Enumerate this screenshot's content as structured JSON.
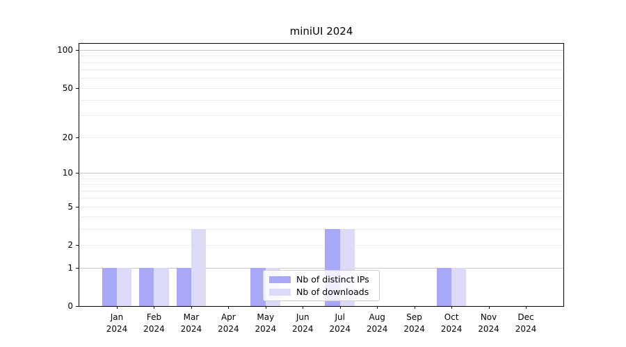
{
  "chart_data": {
    "type": "bar",
    "title": "miniUI 2024",
    "categories": [
      "Jan",
      "Feb",
      "Mar",
      "Apr",
      "May",
      "Jun",
      "Jul",
      "Aug",
      "Sep",
      "Oct",
      "Nov",
      "Dec"
    ],
    "year_label": "2024",
    "series": [
      {
        "name": "Nb of distinct IPs",
        "color": "#a8a8f6",
        "values": [
          1,
          1,
          1,
          0,
          1,
          0,
          3,
          0,
          0,
          1,
          0,
          0
        ]
      },
      {
        "name": "Nb of downloads",
        "color": "#dbdbf8",
        "values": [
          1,
          1,
          3,
          0,
          1,
          0,
          3,
          0,
          0,
          1,
          0,
          0
        ]
      }
    ],
    "y_axis": {
      "scale": "log1p",
      "ticks": [
        0,
        1,
        2,
        5,
        10,
        20,
        50,
        100
      ],
      "top_value": 112,
      "gridlines_major": [
        1,
        10,
        100
      ],
      "gridlines_minor": [
        2,
        3,
        4,
        5,
        6,
        7,
        8,
        9,
        20,
        30,
        40,
        50,
        60,
        70,
        80,
        90
      ]
    },
    "x_axis": {
      "tick_label_lines": 2
    },
    "legend": {
      "position": "lower center"
    },
    "colors": {
      "grid_major": "#c9c9c9",
      "grid_minor": "#ededed",
      "axis": "#000000",
      "background": "#ffffff"
    }
  }
}
